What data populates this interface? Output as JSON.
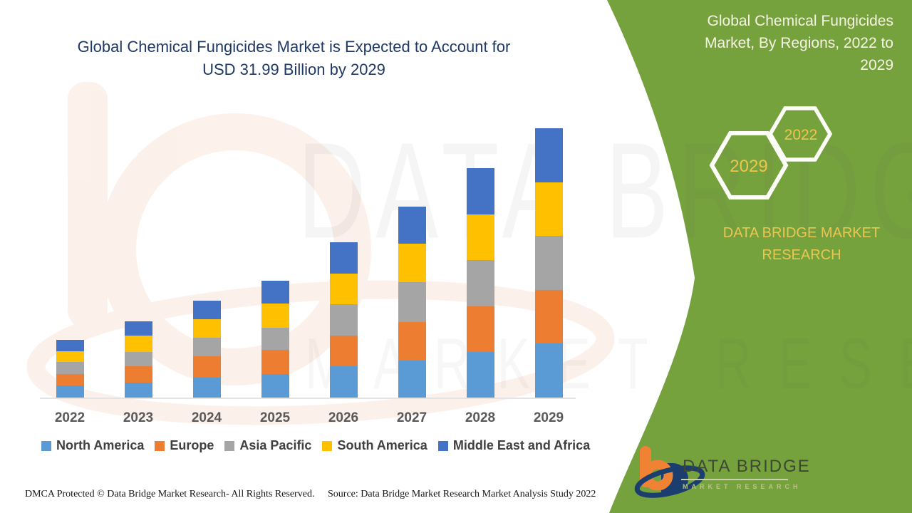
{
  "colors": {
    "panel_green": "#76A23E",
    "title_navy": "#1F3864",
    "hex_year_gold": "#EDC64B",
    "brand_yellow": "#E9C851",
    "axis_gray": "#E3E3E3",
    "x_label_gray": "#595959",
    "legend_text": "#404040",
    "logo_orange": "#F08233",
    "logo_navy": "#1C3E6E"
  },
  "main_title": {
    "lines": [
      "Global Chemical Fungicides Market is Expected to Account for",
      "USD 31.99 Billion by 2029"
    ]
  },
  "side_panel": {
    "title_lines": [
      "Global Chemical Fungicides",
      "Market, By Regions, 2022 to",
      "2029"
    ],
    "hexagons": [
      {
        "label": "2029"
      },
      {
        "label": "2022"
      }
    ],
    "brand_lines": [
      "DATA BRIDGE MARKET",
      "RESEARCH"
    ]
  },
  "chart_data": {
    "type": "bar",
    "stacked": true,
    "unit": "USD Billion",
    "title": "Global Chemical Fungicides Market is Expected to Account for USD 31.99 Billion by 2029",
    "xlabel": "",
    "ylabel": "",
    "grid": false,
    "legend_position": "bottom",
    "ylim": [
      0,
      32
    ],
    "categories": [
      "2022",
      "2023",
      "2024",
      "2025",
      "2026",
      "2027",
      "2028",
      "2029"
    ],
    "series": [
      {
        "name": "North America",
        "color": "#5B9BD5",
        "values": [
          1.4,
          1.8,
          2.4,
          2.8,
          3.7,
          4.4,
          5.4,
          6.4
        ]
      },
      {
        "name": "Europe",
        "color": "#ED7D31",
        "values": [
          1.4,
          1.9,
          2.5,
          2.9,
          3.7,
          4.6,
          5.4,
          6.4
        ]
      },
      {
        "name": "Asia Pacific",
        "color": "#A5A5A5",
        "values": [
          1.4,
          1.7,
          2.2,
          2.6,
          3.7,
          4.7,
          5.5,
          6.4
        ]
      },
      {
        "name": "South America",
        "color": "#FFC000",
        "values": [
          1.3,
          2.0,
          2.2,
          2.9,
          3.6,
          4.6,
          5.5,
          6.39
        ]
      },
      {
        "name": "Middle East and Africa",
        "color": "#4472C4",
        "values": [
          1.4,
          1.7,
          2.2,
          2.7,
          3.8,
          4.4,
          5.5,
          6.4
        ]
      }
    ],
    "totals": [
      6.9,
      9.1,
      11.5,
      13.9,
      18.5,
      22.7,
      27.3,
      31.99
    ]
  },
  "watermark": {
    "line1": "DATA BRIDGE",
    "line2": "MARKET RESEARCH"
  },
  "logo": {
    "name": "DATA BRIDGE",
    "sub": "MARKET RESEARCH"
  },
  "footer": {
    "dmca": "DMCA Protected © Data Bridge Market Research- All Rights Reserved.",
    "source": "Source: Data Bridge Market Research Market Analysis Study 2022"
  }
}
